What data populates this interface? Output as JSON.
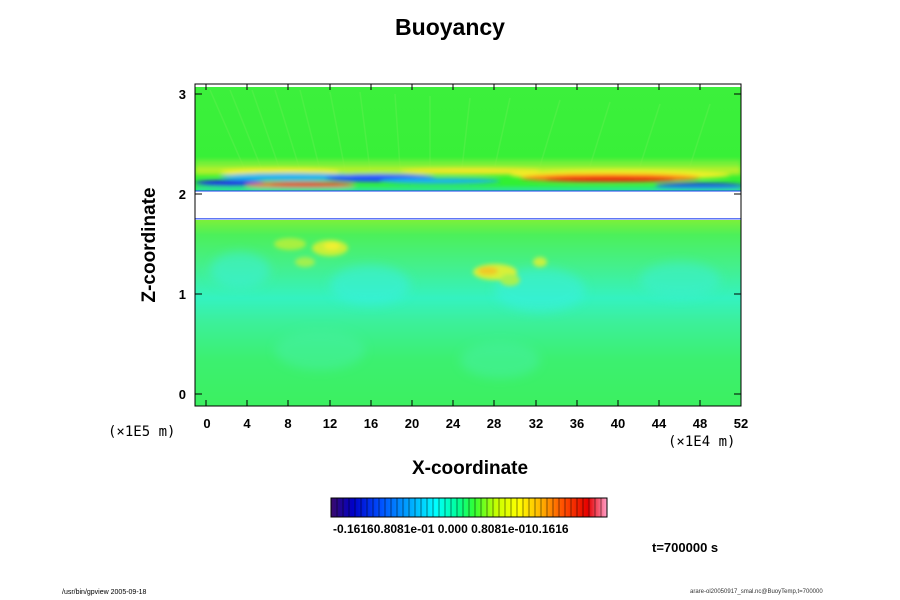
{
  "chart_data": {
    "type": "heatmap",
    "title": "Buoyancy",
    "xlabel": "X-coordinate",
    "ylabel": "Z-coordinate",
    "x_unit_label": "(×1E4 m)",
    "y_unit_label": "(×1E5 m)",
    "x_ticks": [
      "0",
      "4",
      "8",
      "12",
      "16",
      "20",
      "24",
      "28",
      "32",
      "36",
      "40",
      "44",
      "48",
      "52"
    ],
    "y_ticks": [
      "0",
      "1",
      "2",
      "3"
    ],
    "xlim": [
      -1,
      52
    ],
    "ylim": [
      -0.1,
      3.05
    ],
    "blank_band_z": [
      1.73,
      2.02
    ],
    "colorbar": {
      "range": [
        -0.1616,
        0.1616
      ],
      "tick_labels_text": "-0.16160.8081e-01 0.000 0.8081e-010.1616",
      "colors": [
        "#3a0a6a",
        "#0000c8",
        "#0050ff",
        "#00b4ff",
        "#00ffff",
        "#00ff96",
        "#32ff32",
        "#c8ff00",
        "#ffff00",
        "#ffb400",
        "#ff5000",
        "#e60000",
        "#ff9ec8"
      ]
    },
    "background_color": "#32f032",
    "features": [
      {
        "z": 2.18,
        "x_range": [
          0,
          52
        ],
        "sign": "positive"
      },
      {
        "z": 2.1,
        "x_range": [
          5,
          28
        ],
        "sign": "mixed"
      },
      {
        "z": 2.18,
        "x_range": [
          31,
          50
        ],
        "sign": "positive"
      },
      {
        "z": 1.22,
        "x_range": [
          26,
          31
        ],
        "sign": "positive"
      },
      {
        "z": 1.4,
        "x_range": [
          6,
          14
        ],
        "sign": "positive"
      }
    ]
  },
  "annotation": {
    "time": "t=700000 s"
  },
  "footer": {
    "left": "/usr/bin/gpview 2005-09-18",
    "right": "arare-ol20050917_smal.nc@BuoyTemp,t=700000"
  }
}
